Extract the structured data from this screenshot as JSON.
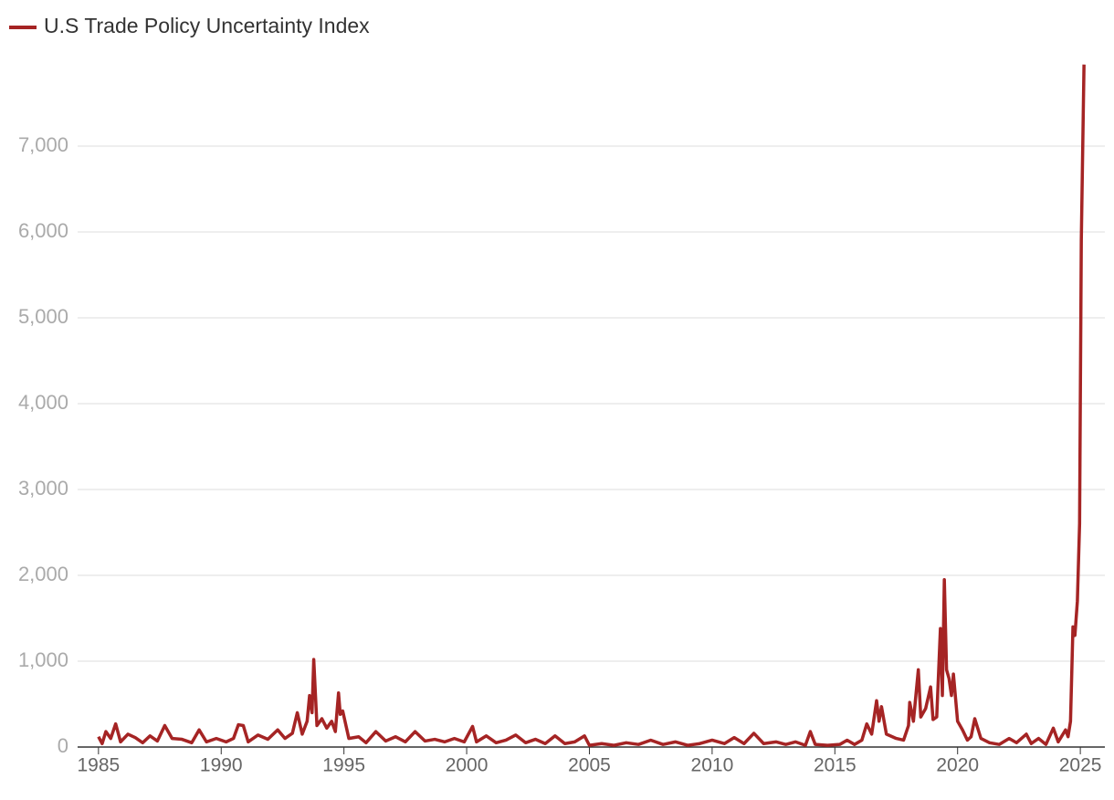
{
  "chart_data": {
    "type": "line",
    "x": [
      1985.0,
      1985.15,
      1985.3,
      1985.5,
      1985.7,
      1985.9,
      1986.2,
      1986.5,
      1986.8,
      1987.1,
      1987.4,
      1987.7,
      1988.0,
      1988.4,
      1988.8,
      1989.1,
      1989.4,
      1989.8,
      1990.2,
      1990.5,
      1990.7,
      1990.9,
      1991.1,
      1991.5,
      1991.9,
      1992.3,
      1992.6,
      1992.9,
      1993.1,
      1993.3,
      1993.5,
      1993.6,
      1993.7,
      1993.77,
      1993.9,
      1994.1,
      1994.3,
      1994.5,
      1994.65,
      1994.78,
      1994.85,
      1994.95,
      1995.2,
      1995.6,
      1995.9,
      1996.3,
      1996.7,
      1997.1,
      1997.5,
      1997.9,
      1998.3,
      1998.7,
      1999.1,
      1999.5,
      1999.9,
      2000.24,
      2000.4,
      2000.8,
      2001.2,
      2001.6,
      2002.0,
      2002.4,
      2002.8,
      2003.2,
      2003.6,
      2004.0,
      2004.4,
      2004.8,
      2005.0,
      2005.5,
      2006.0,
      2006.5,
      2007.0,
      2007.5,
      2008.0,
      2008.5,
      2009.0,
      2009.5,
      2010.0,
      2010.5,
      2010.9,
      2011.3,
      2011.7,
      2012.1,
      2012.6,
      2013.0,
      2013.4,
      2013.8,
      2014.0,
      2014.2,
      2014.7,
      2015.2,
      2015.5,
      2015.8,
      2016.1,
      2016.3,
      2016.5,
      2016.7,
      2016.8,
      2016.9,
      2017.1,
      2017.5,
      2017.8,
      2018.0,
      2018.05,
      2018.2,
      2018.4,
      2018.5,
      2018.7,
      2018.9,
      2019.0,
      2019.15,
      2019.3,
      2019.38,
      2019.46,
      2019.55,
      2019.65,
      2019.75,
      2019.83,
      2020.0,
      2020.2,
      2020.4,
      2020.55,
      2020.7,
      2020.95,
      2021.3,
      2021.7,
      2022.1,
      2022.4,
      2022.8,
      2023.0,
      2023.3,
      2023.6,
      2023.9,
      2024.1,
      2024.4,
      2024.5,
      2024.6,
      2024.7,
      2024.78,
      2024.88,
      2024.97,
      2025.04,
      2025.15
    ],
    "series": [
      {
        "name": "U.S Trade Policy Uncertainty Index",
        "color": "#a52424",
        "values": [
          120,
          40,
          180,
          100,
          270,
          60,
          150,
          110,
          50,
          130,
          70,
          250,
          100,
          90,
          50,
          200,
          60,
          100,
          60,
          100,
          260,
          250,
          60,
          140,
          90,
          200,
          100,
          160,
          400,
          150,
          300,
          600,
          400,
          1020,
          250,
          330,
          220,
          300,
          180,
          630,
          380,
          420,
          100,
          120,
          50,
          180,
          70,
          120,
          60,
          180,
          70,
          90,
          60,
          100,
          60,
          240,
          60,
          130,
          50,
          80,
          140,
          50,
          90,
          40,
          130,
          40,
          60,
          130,
          20,
          40,
          20,
          50,
          30,
          80,
          30,
          60,
          20,
          40,
          80,
          40,
          110,
          40,
          160,
          40,
          60,
          30,
          60,
          20,
          180,
          30,
          20,
          30,
          80,
          30,
          80,
          270,
          150,
          540,
          300,
          470,
          150,
          100,
          80,
          250,
          520,
          300,
          900,
          350,
          450,
          700,
          320,
          350,
          1380,
          600,
          1950,
          900,
          800,
          600,
          850,
          300,
          200,
          80,
          120,
          330,
          100,
          50,
          30,
          100,
          50,
          150,
          40,
          100,
          30,
          220,
          60,
          200,
          120,
          300,
          1400,
          1300,
          1700,
          2600,
          5900,
          7950
        ]
      }
    ],
    "xlim": [
      1984.15,
      2026
    ],
    "xticks": [
      1985,
      1990,
      1995,
      2000,
      2005,
      2010,
      2015,
      2020,
      2025
    ],
    "ylim": [
      0,
      8000
    ],
    "yticks": [
      0,
      {
        "value": 1000,
        "label": "1,000"
      },
      {
        "value": 2000,
        "label": "2,000"
      },
      {
        "value": 3000,
        "label": "3,000"
      },
      {
        "value": 4000,
        "label": "4,000"
      },
      {
        "value": 5000,
        "label": "5,000"
      },
      {
        "value": 6000,
        "label": "6,000"
      },
      {
        "value": 7000,
        "label": "7,000"
      }
    ],
    "grid": true
  }
}
